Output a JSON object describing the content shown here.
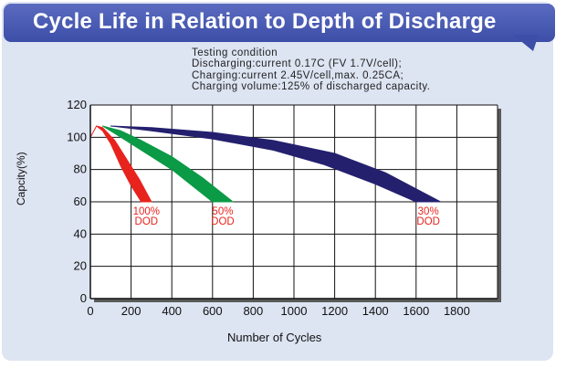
{
  "header": {
    "title": "Cycle Life in Relation to Depth of Discharge"
  },
  "testing_condition": [
    "Testing condition",
    "Discharging:current 0.17C (FV 1.7V/cell);",
    "Charging:current 2.45V/cell,max. 0.25CA;",
    "Charging volume:125% of discharged capacity."
  ],
  "colors": {
    "banner": "#4455b0",
    "panel": "#dde4f2",
    "dod100": "#e8231e",
    "dod50": "#0b9a45",
    "dod30": "#24206e",
    "label": "#e8231e"
  },
  "chart_data": {
    "type": "area",
    "xlabel": "Number of Cycles",
    "ylabel": "Capcity(%)",
    "xlim": [
      0,
      2000
    ],
    "ylim": [
      0,
      120
    ],
    "x_ticks": [
      0,
      200,
      400,
      600,
      800,
      1000,
      1200,
      1400,
      1600,
      1800
    ],
    "y_ticks": [
      0,
      20,
      40,
      60,
      80,
      100,
      120
    ],
    "grid": true,
    "series": [
      {
        "name": "100% DOD",
        "label_lines": [
          "100%",
          "DOD"
        ],
        "color": "#e8231e",
        "upper": [
          [
            0,
            100
          ],
          [
            30,
            107
          ],
          [
            60,
            106
          ],
          [
            120,
            98
          ],
          [
            180,
            86
          ],
          [
            240,
            74
          ],
          [
            300,
            60
          ]
        ],
        "lower": [
          [
            0,
            100
          ],
          [
            30,
            107
          ],
          [
            60,
            104
          ],
          [
            100,
            96
          ],
          [
            150,
            82
          ],
          [
            200,
            70
          ],
          [
            250,
            60
          ]
        ]
      },
      {
        "name": "50% DOD",
        "label_lines": [
          "50%",
          "DOD"
        ],
        "color": "#0b9a45",
        "upper": [
          [
            60,
            107
          ],
          [
            150,
            104
          ],
          [
            250,
            98
          ],
          [
            400,
            88
          ],
          [
            550,
            75
          ],
          [
            700,
            60
          ]
        ],
        "lower": [
          [
            60,
            107
          ],
          [
            150,
            100
          ],
          [
            250,
            92
          ],
          [
            400,
            80
          ],
          [
            520,
            68
          ],
          [
            600,
            60
          ]
        ]
      },
      {
        "name": "30% DOD",
        "label_lines": [
          "30%",
          "DOD"
        ],
        "color": "#24206e",
        "upper": [
          [
            100,
            107
          ],
          [
            300,
            106
          ],
          [
            600,
            103
          ],
          [
            900,
            98
          ],
          [
            1200,
            90
          ],
          [
            1450,
            78
          ],
          [
            1720,
            60
          ]
        ],
        "lower": [
          [
            100,
            107
          ],
          [
            300,
            104
          ],
          [
            600,
            99
          ],
          [
            900,
            92
          ],
          [
            1150,
            83
          ],
          [
            1400,
            71
          ],
          [
            1600,
            60
          ]
        ]
      }
    ]
  }
}
